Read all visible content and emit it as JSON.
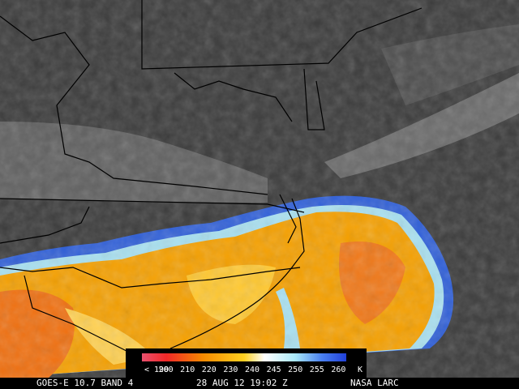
{
  "colorbar": {
    "labels": [
      "< 190",
      "200",
      "210",
      "220",
      "230",
      "240",
      "245",
      "250",
      "255",
      "260",
      "K"
    ]
  },
  "footer": {
    "product": "GOES-E 10.7 BAND 4",
    "timestamp": "28 AUG 12 19:02 Z",
    "source": "NASA LARC"
  }
}
